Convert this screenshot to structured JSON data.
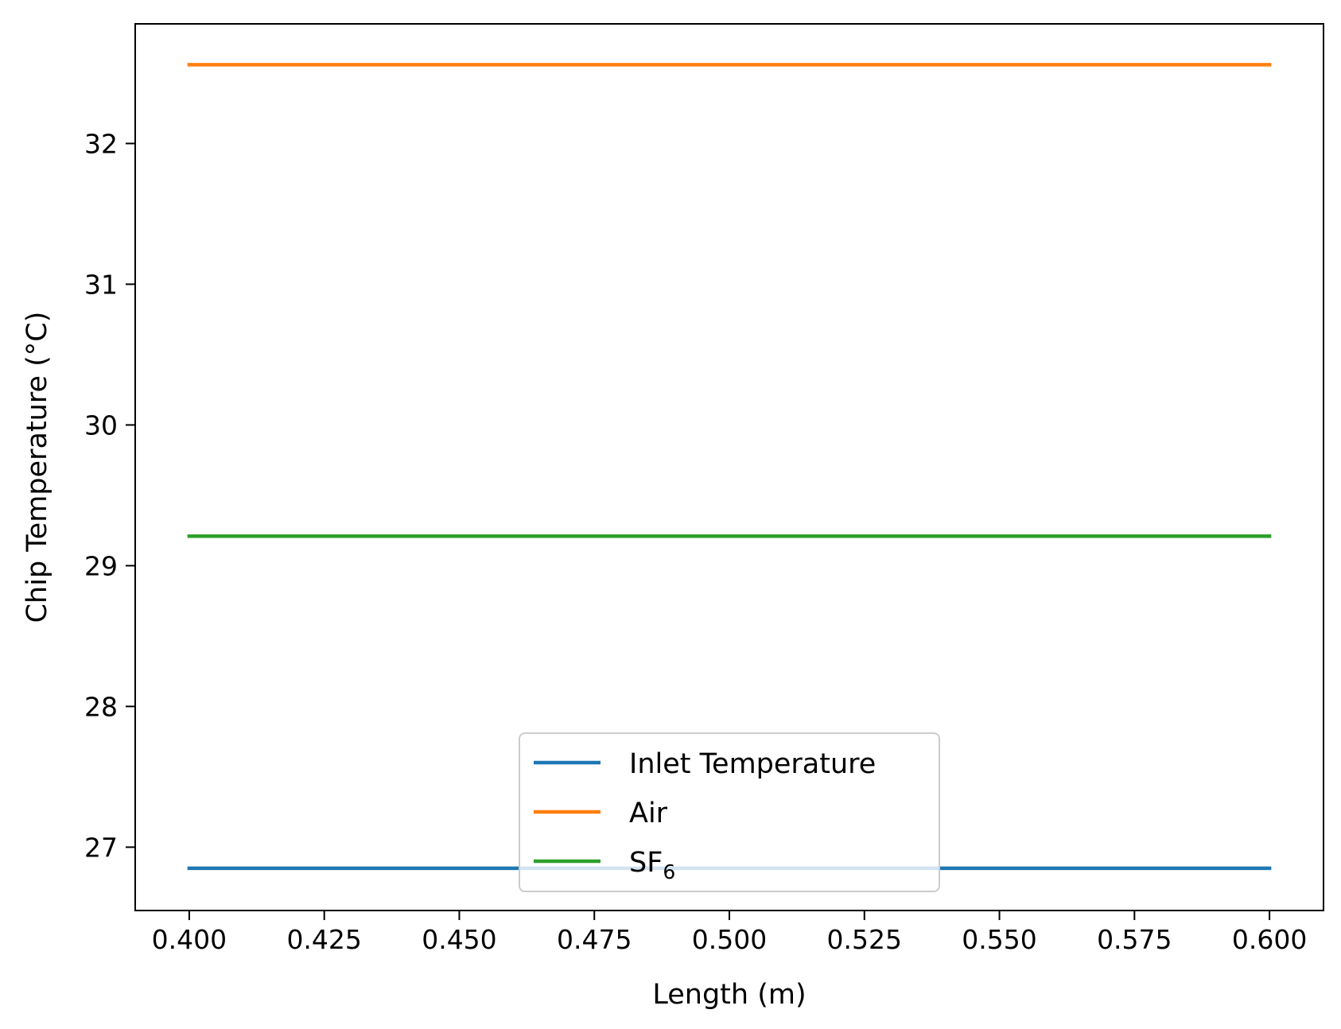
{
  "chart_data": {
    "type": "line",
    "title": "",
    "xlabel": "Length (m)",
    "ylabel": "Chip Temperature (°C)",
    "xlim": [
      0.39,
      0.61
    ],
    "ylim": [
      26.55,
      32.85
    ],
    "xticks": [
      0.4,
      0.425,
      0.45,
      0.475,
      0.5,
      0.525,
      0.55,
      0.575,
      0.6
    ],
    "xtick_labels": [
      "0.400",
      "0.425",
      "0.450",
      "0.475",
      "0.500",
      "0.525",
      "0.550",
      "0.575",
      "0.600"
    ],
    "yticks": [
      27,
      28,
      29,
      30,
      31,
      32
    ],
    "ytick_labels": [
      "27",
      "28",
      "29",
      "30",
      "31",
      "32"
    ],
    "grid": false,
    "legend_position": "lower-center",
    "series": [
      {
        "name": "Inlet Temperature",
        "name_sub": "",
        "color": "#1f77b4",
        "x": [
          0.4,
          0.6
        ],
        "y": [
          26.85,
          26.85
        ]
      },
      {
        "name": "Air",
        "name_sub": "",
        "color": "#ff7f0e",
        "x": [
          0.4,
          0.6
        ],
        "y": [
          32.56,
          32.56
        ]
      },
      {
        "name": "SF",
        "name_sub": "6",
        "color": "#2ca02c",
        "x": [
          0.4,
          0.6
        ],
        "y": [
          29.21,
          29.21
        ]
      }
    ]
  }
}
